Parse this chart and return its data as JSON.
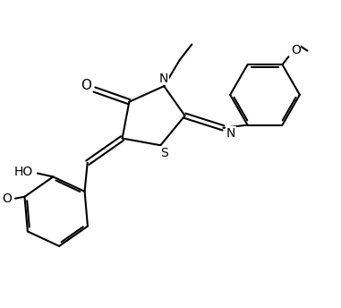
{
  "bg": "#ffffff",
  "bc": "#000000",
  "lw": 1.5,
  "lw2": 1.5,
  "dbo": 0.06,
  "fs": 10,
  "fig_w": 3.81,
  "fig_h": 3.44,
  "dpi": 100,
  "xlim": [
    0.5,
    10.2
  ],
  "ylim": [
    0.3,
    8.5
  ]
}
